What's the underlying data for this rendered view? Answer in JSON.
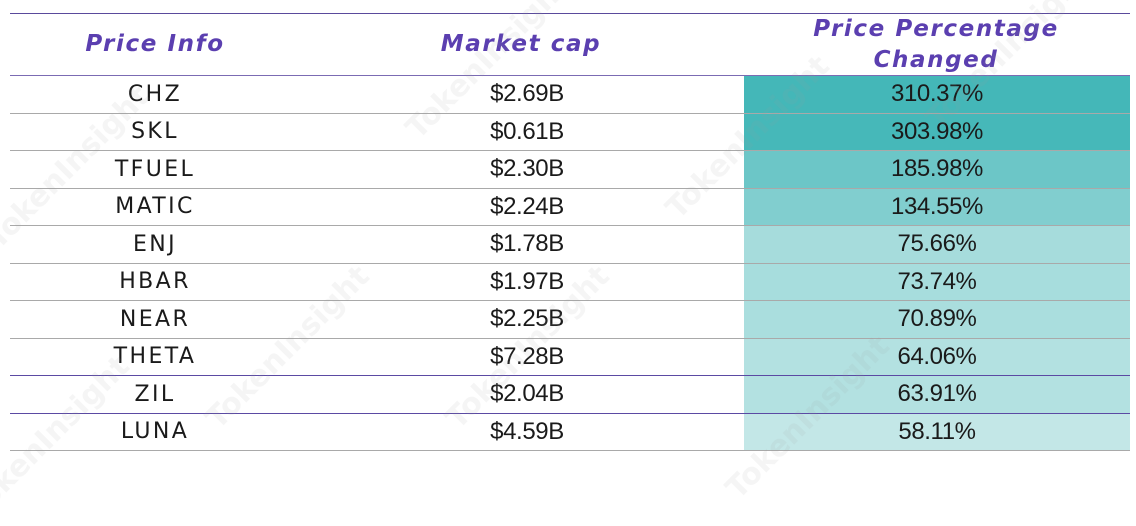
{
  "chart_data": {
    "type": "table",
    "columns": [
      "Price Info",
      "Market cap",
      "Price Percentage\nChanged"
    ],
    "rows": [
      {
        "token": "CHZ",
        "market_cap": "$2.69B",
        "change": "310.37%",
        "change_value": 310.37
      },
      {
        "token": "SKL",
        "market_cap": "$0.61B",
        "change": "303.98%",
        "change_value": 303.98
      },
      {
        "token": "TFUEL",
        "market_cap": "$2.30B",
        "change": "185.98%",
        "change_value": 185.98
      },
      {
        "token": "MATIC",
        "market_cap": "$2.24B",
        "change": "134.55%",
        "change_value": 134.55
      },
      {
        "token": "ENJ",
        "market_cap": "$1.78B",
        "change": "75.66%",
        "change_value": 75.66
      },
      {
        "token": "HBAR",
        "market_cap": "$1.97B",
        "change": "73.74%",
        "change_value": 73.74
      },
      {
        "token": "NEAR",
        "market_cap": "$2.25B",
        "change": "70.89%",
        "change_value": 70.89
      },
      {
        "token": "THETA",
        "market_cap": "$7.28B",
        "change": "64.06%",
        "change_value": 64.06
      },
      {
        "token": "ZIL",
        "market_cap": "$2.04B",
        "change": "63.91%",
        "change_value": 63.91
      },
      {
        "token": "LUNA",
        "market_cap": "$4.59B",
        "change": "58.11%",
        "change_value": 58.11
      }
    ]
  },
  "colors": {
    "header_text": "#5b3fb0",
    "heat_high": "#44b7b8",
    "heat_low": "#c3e7e7"
  },
  "watermark": "TokenInsight"
}
